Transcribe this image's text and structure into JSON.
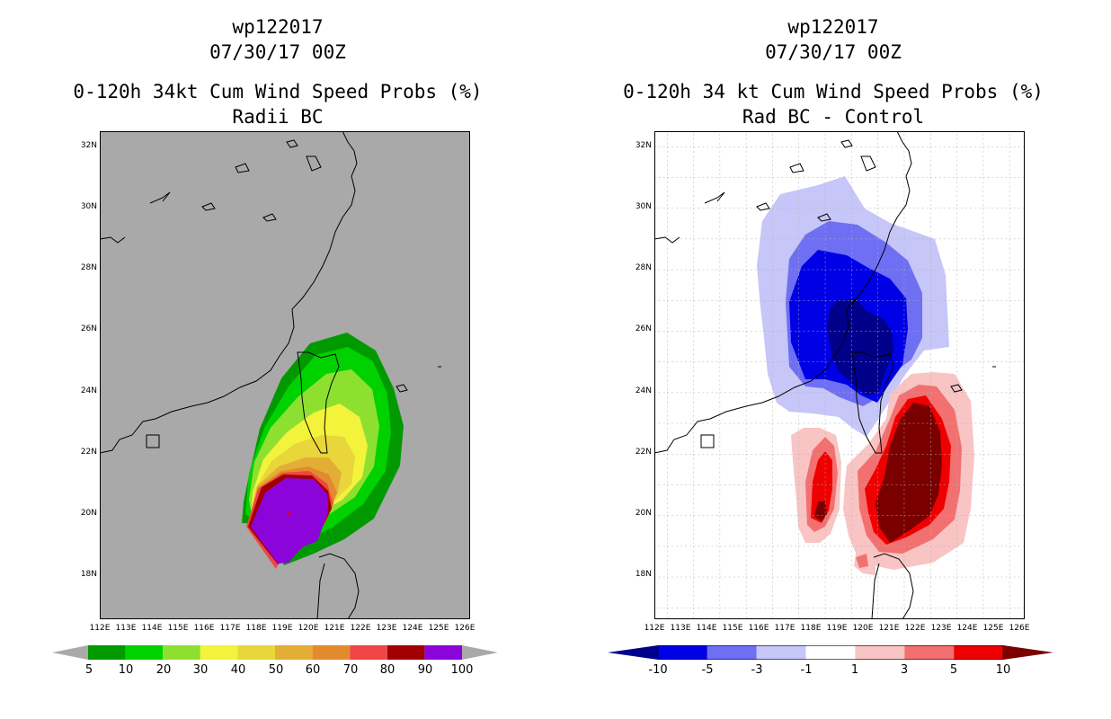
{
  "left_panel": {
    "storm_id": "wp122017",
    "datetime": "07/30/17 00Z",
    "product": "0-120h 34kt Cum Wind Speed Probs (%)",
    "subtitle": "Radii BC",
    "background_color": "#a9a9a9",
    "colorbar": {
      "labels": [
        "5",
        "10",
        "20",
        "30",
        "40",
        "50",
        "60",
        "70",
        "80",
        "90",
        "100"
      ],
      "colors": [
        "#009a00",
        "#00d100",
        "#8ee030",
        "#f3f33b",
        "#e9d63a",
        "#e3ae36",
        "#e48a2e",
        "#f14545",
        "#a20000",
        "#8b05da"
      ],
      "end_arrow_color": "#a9a9a9"
    }
  },
  "right_panel": {
    "storm_id": "wp122017",
    "datetime": "07/30/17 00Z",
    "product": "0-120h 34 kt Cum Wind Speed Probs (%)",
    "subtitle": "Rad BC - Control",
    "background_color": "#ffffff",
    "colorbar": {
      "labels": [
        "-10",
        "-5",
        "-3",
        "-1",
        "1",
        "3",
        "5",
        "10"
      ],
      "colors": [
        "#0000e6",
        "#6f6ff4",
        "#c6c6f8",
        "#ffffff",
        "#f8c4c4",
        "#f37070",
        "#ee0000"
      ],
      "left_arrow_color": "#00008b",
      "right_arrow_color": "#7a0000"
    }
  },
  "axes": {
    "lat_labels": [
      "32N",
      "30N",
      "28N",
      "26N",
      "24N",
      "22N",
      "20N",
      "18N"
    ],
    "lon_labels": [
      "112E",
      "113E",
      "114E",
      "115E",
      "116E",
      "117E",
      "118E",
      "119E",
      "120E",
      "121E",
      "122E",
      "123E",
      "124E",
      "125E",
      "126E"
    ]
  }
}
